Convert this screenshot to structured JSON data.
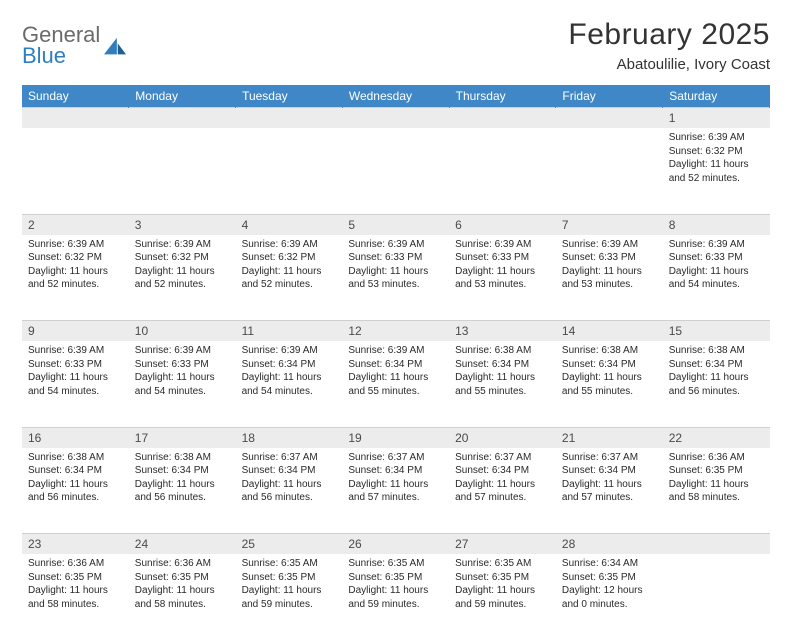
{
  "brand": {
    "general": "General",
    "blue": "Blue"
  },
  "title": "February 2025",
  "location": "Abatoulilie, Ivory Coast",
  "colors": {
    "header_bg": "#3f87c6",
    "header_text": "#ffffff",
    "daynum_bg": "#ececec",
    "text": "#2a2a2a",
    "logo_gray": "#6b6b6b",
    "logo_blue": "#2f7fbf"
  },
  "weekdays": [
    "Sunday",
    "Monday",
    "Tuesday",
    "Wednesday",
    "Thursday",
    "Friday",
    "Saturday"
  ],
  "weeks": [
    {
      "nums": [
        "",
        "",
        "",
        "",
        "",
        "",
        "1"
      ],
      "cells": [
        null,
        null,
        null,
        null,
        null,
        null,
        {
          "sunrise": "Sunrise: 6:39 AM",
          "sunset": "Sunset: 6:32 PM",
          "day1": "Daylight: 11 hours",
          "day2": "and 52 minutes."
        }
      ]
    },
    {
      "nums": [
        "2",
        "3",
        "4",
        "5",
        "6",
        "7",
        "8"
      ],
      "cells": [
        {
          "sunrise": "Sunrise: 6:39 AM",
          "sunset": "Sunset: 6:32 PM",
          "day1": "Daylight: 11 hours",
          "day2": "and 52 minutes."
        },
        {
          "sunrise": "Sunrise: 6:39 AM",
          "sunset": "Sunset: 6:32 PM",
          "day1": "Daylight: 11 hours",
          "day2": "and 52 minutes."
        },
        {
          "sunrise": "Sunrise: 6:39 AM",
          "sunset": "Sunset: 6:32 PM",
          "day1": "Daylight: 11 hours",
          "day2": "and 52 minutes."
        },
        {
          "sunrise": "Sunrise: 6:39 AM",
          "sunset": "Sunset: 6:33 PM",
          "day1": "Daylight: 11 hours",
          "day2": "and 53 minutes."
        },
        {
          "sunrise": "Sunrise: 6:39 AM",
          "sunset": "Sunset: 6:33 PM",
          "day1": "Daylight: 11 hours",
          "day2": "and 53 minutes."
        },
        {
          "sunrise": "Sunrise: 6:39 AM",
          "sunset": "Sunset: 6:33 PM",
          "day1": "Daylight: 11 hours",
          "day2": "and 53 minutes."
        },
        {
          "sunrise": "Sunrise: 6:39 AM",
          "sunset": "Sunset: 6:33 PM",
          "day1": "Daylight: 11 hours",
          "day2": "and 54 minutes."
        }
      ]
    },
    {
      "nums": [
        "9",
        "10",
        "11",
        "12",
        "13",
        "14",
        "15"
      ],
      "cells": [
        {
          "sunrise": "Sunrise: 6:39 AM",
          "sunset": "Sunset: 6:33 PM",
          "day1": "Daylight: 11 hours",
          "day2": "and 54 minutes."
        },
        {
          "sunrise": "Sunrise: 6:39 AM",
          "sunset": "Sunset: 6:33 PM",
          "day1": "Daylight: 11 hours",
          "day2": "and 54 minutes."
        },
        {
          "sunrise": "Sunrise: 6:39 AM",
          "sunset": "Sunset: 6:34 PM",
          "day1": "Daylight: 11 hours",
          "day2": "and 54 minutes."
        },
        {
          "sunrise": "Sunrise: 6:39 AM",
          "sunset": "Sunset: 6:34 PM",
          "day1": "Daylight: 11 hours",
          "day2": "and 55 minutes."
        },
        {
          "sunrise": "Sunrise: 6:38 AM",
          "sunset": "Sunset: 6:34 PM",
          "day1": "Daylight: 11 hours",
          "day2": "and 55 minutes."
        },
        {
          "sunrise": "Sunrise: 6:38 AM",
          "sunset": "Sunset: 6:34 PM",
          "day1": "Daylight: 11 hours",
          "day2": "and 55 minutes."
        },
        {
          "sunrise": "Sunrise: 6:38 AM",
          "sunset": "Sunset: 6:34 PM",
          "day1": "Daylight: 11 hours",
          "day2": "and 56 minutes."
        }
      ]
    },
    {
      "nums": [
        "16",
        "17",
        "18",
        "19",
        "20",
        "21",
        "22"
      ],
      "cells": [
        {
          "sunrise": "Sunrise: 6:38 AM",
          "sunset": "Sunset: 6:34 PM",
          "day1": "Daylight: 11 hours",
          "day2": "and 56 minutes."
        },
        {
          "sunrise": "Sunrise: 6:38 AM",
          "sunset": "Sunset: 6:34 PM",
          "day1": "Daylight: 11 hours",
          "day2": "and 56 minutes."
        },
        {
          "sunrise": "Sunrise: 6:37 AM",
          "sunset": "Sunset: 6:34 PM",
          "day1": "Daylight: 11 hours",
          "day2": "and 56 minutes."
        },
        {
          "sunrise": "Sunrise: 6:37 AM",
          "sunset": "Sunset: 6:34 PM",
          "day1": "Daylight: 11 hours",
          "day2": "and 57 minutes."
        },
        {
          "sunrise": "Sunrise: 6:37 AM",
          "sunset": "Sunset: 6:34 PM",
          "day1": "Daylight: 11 hours",
          "day2": "and 57 minutes."
        },
        {
          "sunrise": "Sunrise: 6:37 AM",
          "sunset": "Sunset: 6:34 PM",
          "day1": "Daylight: 11 hours",
          "day2": "and 57 minutes."
        },
        {
          "sunrise": "Sunrise: 6:36 AM",
          "sunset": "Sunset: 6:35 PM",
          "day1": "Daylight: 11 hours",
          "day2": "and 58 minutes."
        }
      ]
    },
    {
      "nums": [
        "23",
        "24",
        "25",
        "26",
        "27",
        "28",
        ""
      ],
      "cells": [
        {
          "sunrise": "Sunrise: 6:36 AM",
          "sunset": "Sunset: 6:35 PM",
          "day1": "Daylight: 11 hours",
          "day2": "and 58 minutes."
        },
        {
          "sunrise": "Sunrise: 6:36 AM",
          "sunset": "Sunset: 6:35 PM",
          "day1": "Daylight: 11 hours",
          "day2": "and 58 minutes."
        },
        {
          "sunrise": "Sunrise: 6:35 AM",
          "sunset": "Sunset: 6:35 PM",
          "day1": "Daylight: 11 hours",
          "day2": "and 59 minutes."
        },
        {
          "sunrise": "Sunrise: 6:35 AM",
          "sunset": "Sunset: 6:35 PM",
          "day1": "Daylight: 11 hours",
          "day2": "and 59 minutes."
        },
        {
          "sunrise": "Sunrise: 6:35 AM",
          "sunset": "Sunset: 6:35 PM",
          "day1": "Daylight: 11 hours",
          "day2": "and 59 minutes."
        },
        {
          "sunrise": "Sunrise: 6:34 AM",
          "sunset": "Sunset: 6:35 PM",
          "day1": "Daylight: 12 hours",
          "day2": "and 0 minutes."
        },
        null
      ]
    }
  ]
}
